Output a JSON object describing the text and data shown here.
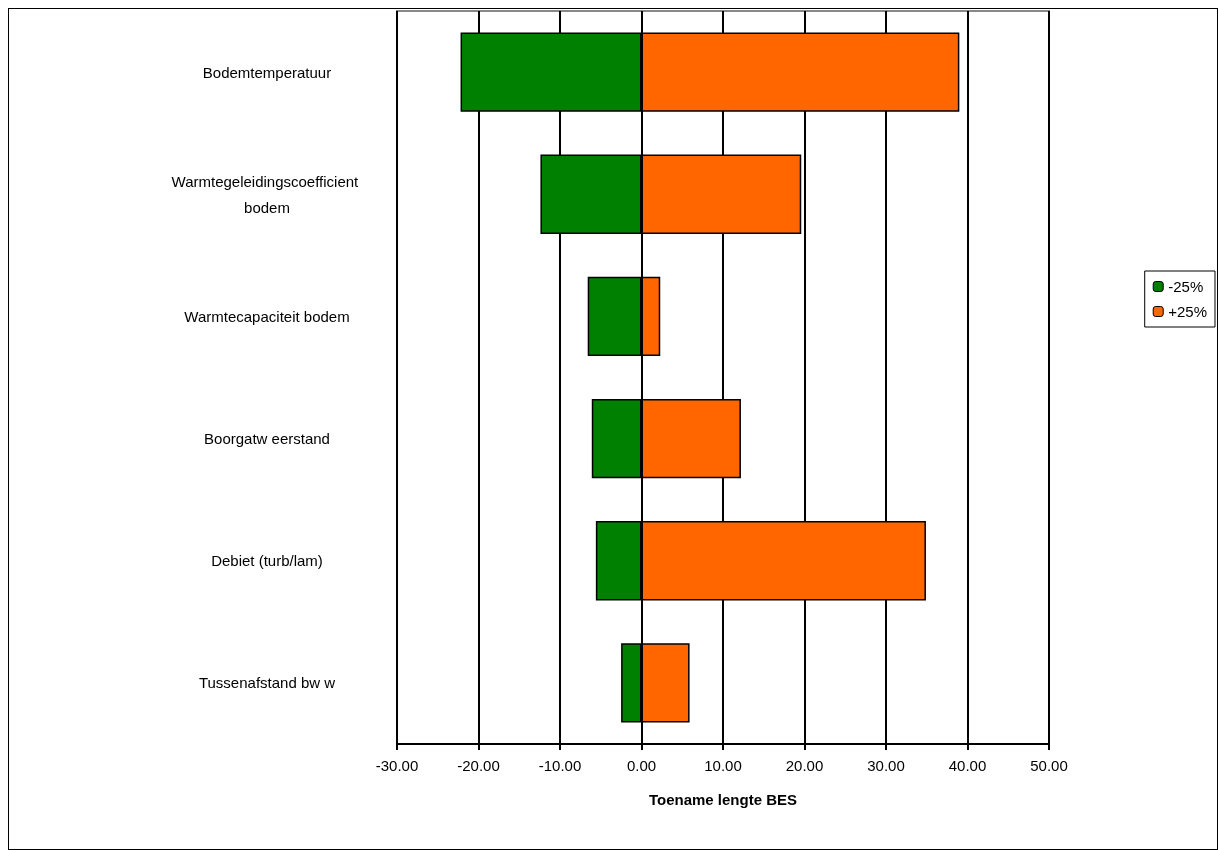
{
  "chart_data": {
    "type": "bar",
    "orientation": "horizontal",
    "stacked": true,
    "xlabel": "Toename lengte BES",
    "categories": [
      "Bodemtemperatuur",
      "Warmtegeleidingscoefficient bodem",
      "Warmtecapaciteit bodem",
      "Boorgatw eerstand",
      "Debiet (turb/lam)",
      "Tussenafstand bw w"
    ],
    "series": [
      {
        "name": "-25%",
        "color": "#008000",
        "values": [
          -22.2,
          -12.4,
          -6.6,
          -6.1,
          -5.6,
          -2.5
        ]
      },
      {
        "name": "+25%",
        "color": "#ff6600",
        "values": [
          39.0,
          19.6,
          2.3,
          12.2,
          34.9,
          5.9
        ]
      }
    ],
    "xlim": [
      -30,
      50
    ],
    "xticks": [
      {
        "value": -30,
        "label": "-30.00"
      },
      {
        "value": -20,
        "label": "-20.00"
      },
      {
        "value": -10,
        "label": "-10.00"
      },
      {
        "value": 0,
        "label": "0.00"
      },
      {
        "value": 10,
        "label": "10.00"
      },
      {
        "value": 20,
        "label": "20.00"
      },
      {
        "value": 30,
        "label": "30.00"
      },
      {
        "value": 40,
        "label": "40.00"
      },
      {
        "value": 50,
        "label": "50.00"
      }
    ],
    "grid": "x",
    "legend": "right"
  }
}
